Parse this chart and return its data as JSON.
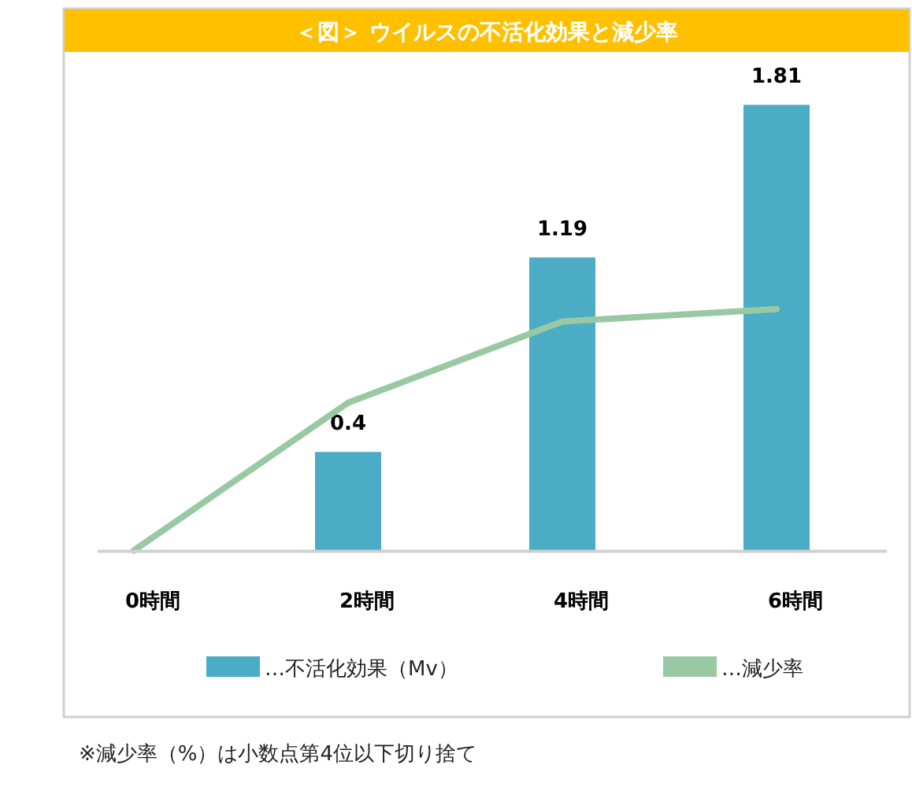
{
  "chart_data": {
    "type": "bar",
    "title": "＜図＞ ウイルスの不活化効果と減少率",
    "categories": [
      "0時間",
      "2時間",
      "4時間",
      "6時間"
    ],
    "series": [
      {
        "name": "…不活化効果（Mv）",
        "color": "#4bacc6",
        "values": [
          null,
          0.4,
          1.19,
          1.81
        ],
        "value_labels": [
          null,
          "0.4",
          "1.19",
          "1.81"
        ]
      },
      {
        "name": "…減少率",
        "type": "line",
        "color": "#98c9a3",
        "values": [
          0,
          0.6,
          0.93,
          0.98
        ]
      }
    ],
    "tick_labels": "x",
    "legend": "bottom",
    "annotations": [
      "※減少率（%）は小数点第4位以下切り捨て"
    ]
  }
}
